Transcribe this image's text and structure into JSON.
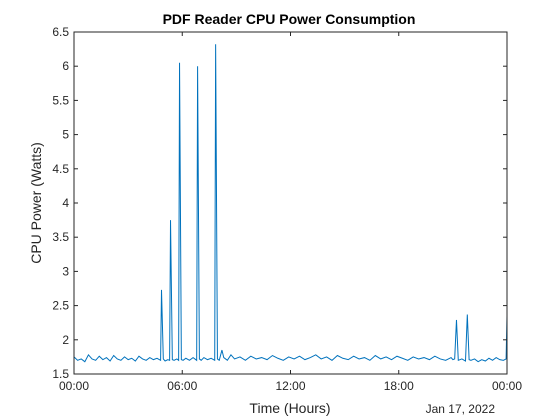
{
  "chart_data": {
    "type": "line",
    "title": "PDF Reader CPU Power Consumption",
    "xlabel": "Time (Hours)",
    "ylabel": "CPU Power (Watts)",
    "date_label": "Jan 17, 2022",
    "xlim": [
      0,
      24
    ],
    "ylim": [
      1.5,
      6.5
    ],
    "x_ticks": [
      {
        "value": 0,
        "label": "00:00"
      },
      {
        "value": 6,
        "label": "06:00"
      },
      {
        "value": 12,
        "label": "12:00"
      },
      {
        "value": 18,
        "label": "18:00"
      },
      {
        "value": 24,
        "label": "00:00"
      }
    ],
    "y_ticks": [
      {
        "value": 1.5,
        "label": "1.5"
      },
      {
        "value": 2,
        "label": "2"
      },
      {
        "value": 2.5,
        "label": "2.5"
      },
      {
        "value": 3,
        "label": "3"
      },
      {
        "value": 3.5,
        "label": "3.5"
      },
      {
        "value": 4,
        "label": "4"
      },
      {
        "value": 4.5,
        "label": "4.5"
      },
      {
        "value": 5,
        "label": "5"
      },
      {
        "value": 5.5,
        "label": "5.5"
      },
      {
        "value": 6,
        "label": "6"
      },
      {
        "value": 6.5,
        "label": "6.5"
      }
    ],
    "grid": false,
    "series": [
      {
        "color": "#0072bd",
        "x": [
          0,
          0.2,
          0.4,
          0.6,
          0.8,
          1.0,
          1.2,
          1.4,
          1.6,
          1.8,
          2.0,
          2.2,
          2.4,
          2.6,
          2.8,
          3.0,
          3.2,
          3.4,
          3.6,
          3.8,
          4.0,
          4.2,
          4.4,
          4.6,
          4.8,
          4.85,
          4.95,
          5.05,
          5.2,
          5.3,
          5.35,
          5.45,
          5.55,
          5.7,
          5.8,
          5.85,
          5.95,
          6.05,
          6.2,
          6.4,
          6.6,
          6.8,
          6.85,
          6.95,
          7.05,
          7.2,
          7.4,
          7.6,
          7.8,
          7.85,
          7.95,
          8.05,
          8.2,
          8.3,
          8.5,
          8.7,
          8.9,
          9.2,
          9.5,
          9.8,
          10.1,
          10.4,
          10.7,
          11.0,
          11.3,
          11.6,
          11.9,
          12.2,
          12.5,
          12.8,
          13.1,
          13.4,
          13.7,
          14.0,
          14.3,
          14.6,
          14.9,
          15.2,
          15.5,
          15.8,
          16.1,
          16.4,
          16.7,
          17.0,
          17.3,
          17.6,
          17.9,
          18.2,
          18.5,
          18.8,
          19.1,
          19.4,
          19.7,
          20.0,
          20.3,
          20.6,
          20.9,
          21.0,
          21.1,
          21.2,
          21.3,
          21.5,
          21.7,
          21.8,
          21.9,
          22.0,
          22.2,
          22.4,
          22.6,
          22.8,
          23.0,
          23.2,
          23.4,
          23.6,
          23.8,
          23.95,
          24.0
        ],
        "y": [
          1.75,
          1.7,
          1.72,
          1.68,
          1.78,
          1.72,
          1.7,
          1.76,
          1.71,
          1.74,
          1.69,
          1.77,
          1.72,
          1.7,
          1.75,
          1.71,
          1.73,
          1.69,
          1.76,
          1.72,
          1.7,
          1.74,
          1.71,
          1.73,
          1.7,
          2.73,
          1.72,
          1.69,
          1.71,
          1.7,
          3.75,
          1.71,
          1.7,
          1.72,
          1.7,
          6.05,
          1.71,
          1.7,
          1.73,
          1.7,
          1.74,
          1.7,
          6.0,
          1.72,
          1.7,
          1.74,
          1.71,
          1.73,
          1.7,
          6.32,
          1.72,
          1.7,
          1.85,
          1.74,
          1.7,
          1.78,
          1.72,
          1.75,
          1.7,
          1.76,
          1.72,
          1.74,
          1.71,
          1.77,
          1.73,
          1.7,
          1.75,
          1.72,
          1.76,
          1.71,
          1.74,
          1.78,
          1.72,
          1.75,
          1.7,
          1.77,
          1.73,
          1.71,
          1.76,
          1.72,
          1.74,
          1.7,
          1.77,
          1.72,
          1.75,
          1.71,
          1.76,
          1.73,
          1.7,
          1.75,
          1.72,
          1.74,
          1.71,
          1.76,
          1.72,
          1.7,
          1.74,
          1.71,
          1.72,
          2.29,
          1.7,
          1.72,
          1.69,
          2.37,
          1.71,
          1.7,
          1.72,
          1.68,
          1.71,
          1.69,
          1.73,
          1.7,
          1.74,
          1.71,
          1.7,
          1.72,
          2.35
        ]
      }
    ]
  }
}
